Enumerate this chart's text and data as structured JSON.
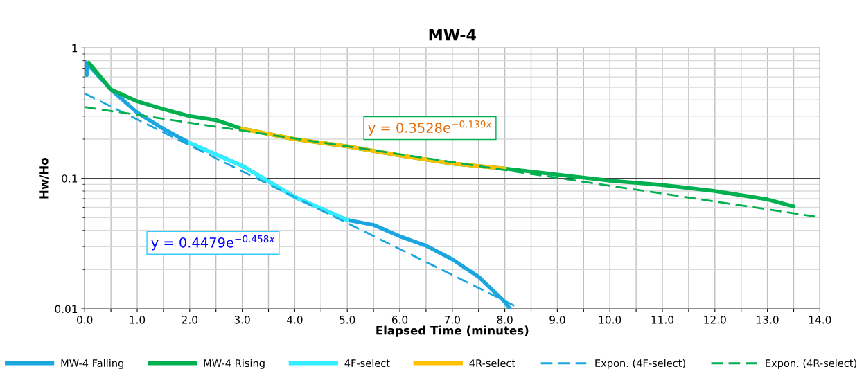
{
  "chart_data": {
    "type": "line",
    "title": "MW-4",
    "xlabel": "Elapsed Time (minutes)",
    "ylabel": "Hw/Ho",
    "log": "y",
    "grid": true,
    "legend": "bottom",
    "marker": "none",
    "xlim": [
      0,
      14
    ],
    "ylim": [
      0.01,
      1
    ],
    "xticks": [
      {
        "value": 0,
        "label": "0.0"
      },
      {
        "value": 0.5,
        "label": null
      },
      {
        "value": 1,
        "label": "1.0"
      },
      {
        "value": 1.5,
        "label": null
      },
      {
        "value": 2,
        "label": "2.0"
      },
      {
        "value": 2.5,
        "label": null
      },
      {
        "value": 3,
        "label": "3.0"
      },
      {
        "value": 3.5,
        "label": null
      },
      {
        "value": 4,
        "label": "4.0"
      },
      {
        "value": 4.5,
        "label": null
      },
      {
        "value": 5,
        "label": "5.0"
      },
      {
        "value": 5.5,
        "label": null
      },
      {
        "value": 6,
        "label": "6.0"
      },
      {
        "value": 6.5,
        "label": null
      },
      {
        "value": 7,
        "label": "7.0"
      },
      {
        "value": 7.5,
        "label": null
      },
      {
        "value": 8,
        "label": "8.0"
      },
      {
        "value": 8.5,
        "label": null
      },
      {
        "value": 9,
        "label": "9.0"
      },
      {
        "value": 9.5,
        "label": null
      },
      {
        "value": 10,
        "label": "10.0"
      },
      {
        "value": 10.5,
        "label": null
      },
      {
        "value": 11,
        "label": "11.0"
      },
      {
        "value": 11.5,
        "label": null
      },
      {
        "value": 12,
        "label": "12.0"
      },
      {
        "value": 12.5,
        "label": null
      },
      {
        "value": 13,
        "label": "13.0"
      },
      {
        "value": 13.5,
        "label": null
      },
      {
        "value": 14,
        "label": "14.0"
      }
    ],
    "yticks": [
      0.01,
      0.1,
      1
    ],
    "series": [
      {
        "name": "MW-4 Falling",
        "color": "#1ca6e0",
        "line_style": "solid",
        "x": [
          0.02,
          0.04,
          0.06,
          0.5,
          1,
          1.5,
          2,
          3,
          4,
          5,
          5.5,
          6,
          6.5,
          7,
          7.5,
          8,
          8.1
        ],
        "values": [
          0.78,
          0.62,
          0.75,
          0.48,
          0.32,
          0.24,
          0.187,
          0.125,
          0.072,
          0.048,
          0.044,
          0.036,
          0.0305,
          0.024,
          0.0176,
          0.0113,
          0.01
        ]
      },
      {
        "name": "MW-4 Rising",
        "color": "#00b050",
        "line_style": "solid",
        "x": [
          0.08,
          0.5,
          1,
          1.5,
          2,
          2.5,
          3,
          4,
          5,
          6,
          7,
          8,
          9,
          10,
          11,
          12,
          13,
          13.5
        ],
        "values": [
          0.77,
          0.48,
          0.39,
          0.34,
          0.3,
          0.28,
          0.24,
          0.2,
          0.176,
          0.15,
          0.13,
          0.119,
          0.107,
          0.096,
          0.089,
          0.08,
          0.069,
          0.061
        ]
      },
      {
        "name": "4F-select",
        "color": "#33eeff",
        "line_style": "solid",
        "x": [
          2,
          3,
          4,
          5
        ],
        "values": [
          0.187,
          0.125,
          0.072,
          0.048
        ]
      },
      {
        "name": "4R-select",
        "color": "#ffc000",
        "line_style": "solid",
        "x": [
          3,
          4,
          5,
          6,
          7,
          8
        ],
        "values": [
          0.24,
          0.2,
          0.176,
          0.15,
          0.13,
          0.119
        ]
      },
      {
        "name": "Expon. (4F-select)",
        "color": "#1ca6e0",
        "line_style": "dashed",
        "x": [
          0,
          8.2
        ],
        "values": [
          0.4479,
          0.0105
        ]
      },
      {
        "name": "Expon. (4R-select)",
        "color": "#00b050",
        "line_style": "dashed",
        "x": [
          0,
          14
        ],
        "values": [
          0.3528,
          0.0504
        ]
      }
    ],
    "annotations": [
      "y = 0.4479e$^{−0.458x}$",
      "y = 0.3528e$^{−0.139x}$"
    ],
    "ref_lines": [
      {
        "axis": "y",
        "value": 0.1,
        "color": "#404040"
      }
    ]
  }
}
